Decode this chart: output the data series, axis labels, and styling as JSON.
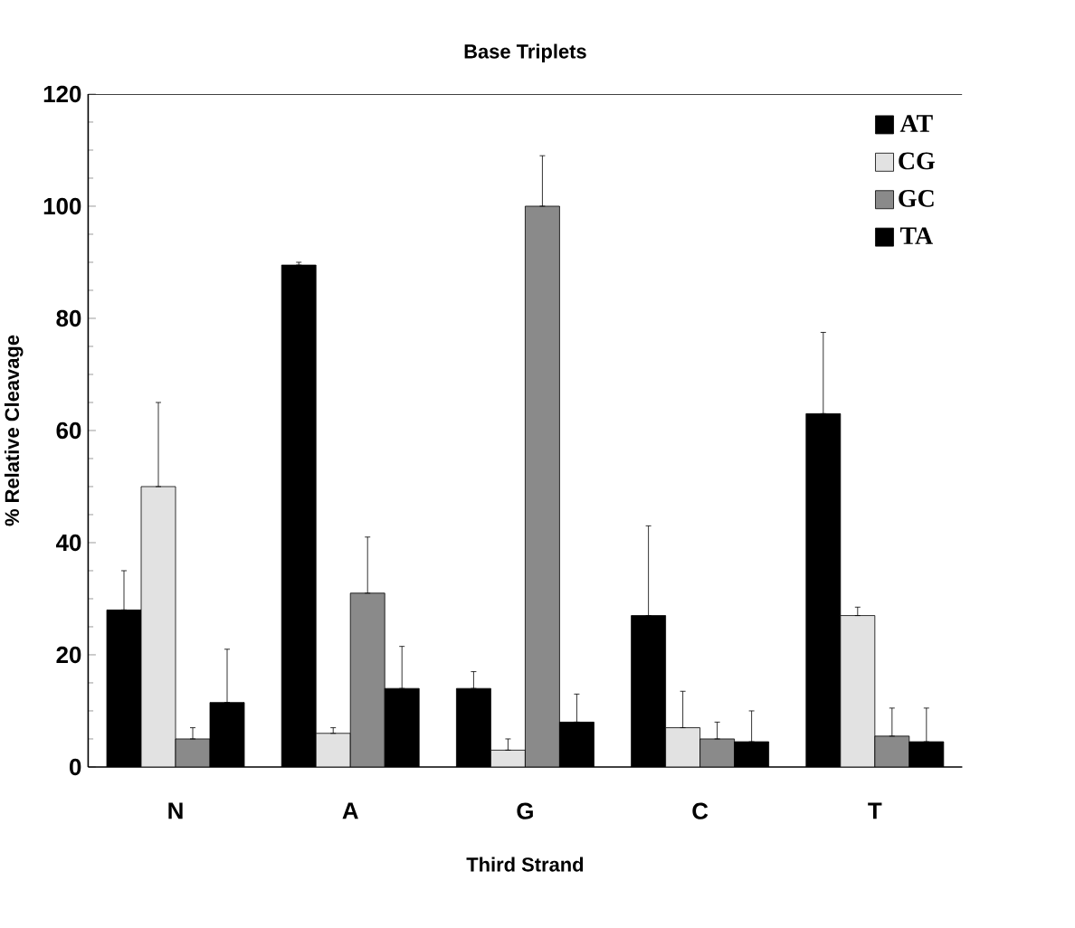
{
  "chart_data": {
    "type": "bar",
    "title": "Base Triplets",
    "xlabel": "Third Strand",
    "ylabel": "% Relative Cleavage",
    "categories": [
      "N",
      "A",
      "G",
      "C",
      "T"
    ],
    "series": [
      {
        "name": "AT",
        "color": "#000000",
        "values": [
          28,
          89.5,
          14,
          27,
          63
        ],
        "errors": [
          [
            28,
            35
          ],
          [
            89.5,
            90
          ],
          [
            14,
            17
          ],
          [
            27,
            43
          ],
          [
            63,
            77.5
          ]
        ]
      },
      {
        "name": "CG",
        "color": "#e2e2e2",
        "values": [
          50,
          6,
          3,
          7,
          27
        ],
        "errors": [
          [
            50,
            65
          ],
          [
            6,
            7
          ],
          [
            3,
            5
          ],
          [
            7,
            13.5
          ],
          [
            27,
            28.5
          ]
        ]
      },
      {
        "name": "GC",
        "color": "#8a8a8a",
        "values": [
          5,
          31,
          100,
          5,
          5.5
        ],
        "errors": [
          [
            5,
            7
          ],
          [
            31,
            41
          ],
          [
            100,
            109
          ],
          [
            5,
            8
          ],
          [
            5.5,
            10.5
          ]
        ]
      },
      {
        "name": "TA",
        "color": "#000000",
        "values": [
          11.5,
          14,
          8,
          4.5,
          4.5
        ],
        "errors": [
          [
            11.5,
            21
          ],
          [
            14,
            21.5
          ],
          [
            8,
            13
          ],
          [
            4.5,
            10
          ],
          [
            4.5,
            10.5
          ]
        ]
      }
    ],
    "ylim": [
      0,
      120
    ],
    "yticks": [
      0,
      20,
      40,
      60,
      80,
      100,
      120
    ],
    "legend": "top right",
    "grid": false
  }
}
